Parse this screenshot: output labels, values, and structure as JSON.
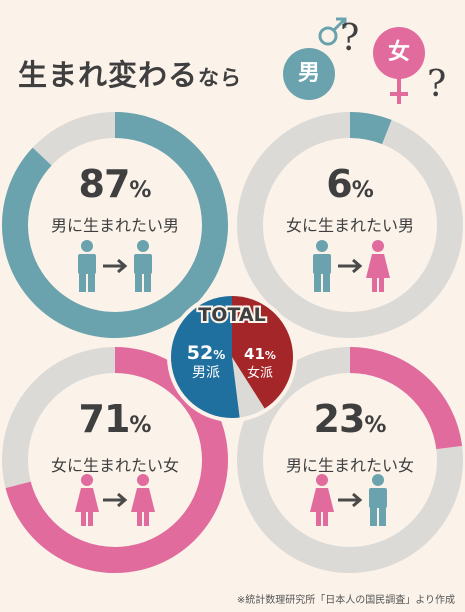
{
  "title": {
    "main": "生まれ変わる",
    "tail": "なら"
  },
  "badges": [
    {
      "text": "男",
      "question": "?",
      "color": "#6aa3ad"
    },
    {
      "text": "女",
      "question": "?",
      "color": "#e26b9e"
    }
  ],
  "colors": {
    "male": "#6aa3ad",
    "female": "#e26b9e",
    "track": "#dcdad6",
    "total_male": "#1f6f9f",
    "total_female": "#a52628",
    "text": "#3f3f3f"
  },
  "chart_data": [
    {
      "type": "pie",
      "value": 87,
      "unit": "%",
      "label": "男に生まれたい男",
      "from": "male",
      "to": "male"
    },
    {
      "type": "pie",
      "value": 6,
      "unit": "%",
      "label": "女に生まれたい男",
      "from": "male",
      "to": "female"
    },
    {
      "type": "pie",
      "value": 71,
      "unit": "%",
      "label": "女に生まれたい女",
      "from": "female",
      "to": "female"
    },
    {
      "type": "pie",
      "value": 23,
      "unit": "%",
      "label": "男に生まれたい女",
      "from": "female",
      "to": "male"
    },
    {
      "type": "pie",
      "title": "TOTAL",
      "series": [
        {
          "name": "男派",
          "value": 52,
          "unit": "%"
        },
        {
          "name": "女派",
          "value": 41,
          "unit": "%"
        }
      ]
    }
  ],
  "footnote": "※統計数理研究所「日本人の国民調査」より作成"
}
